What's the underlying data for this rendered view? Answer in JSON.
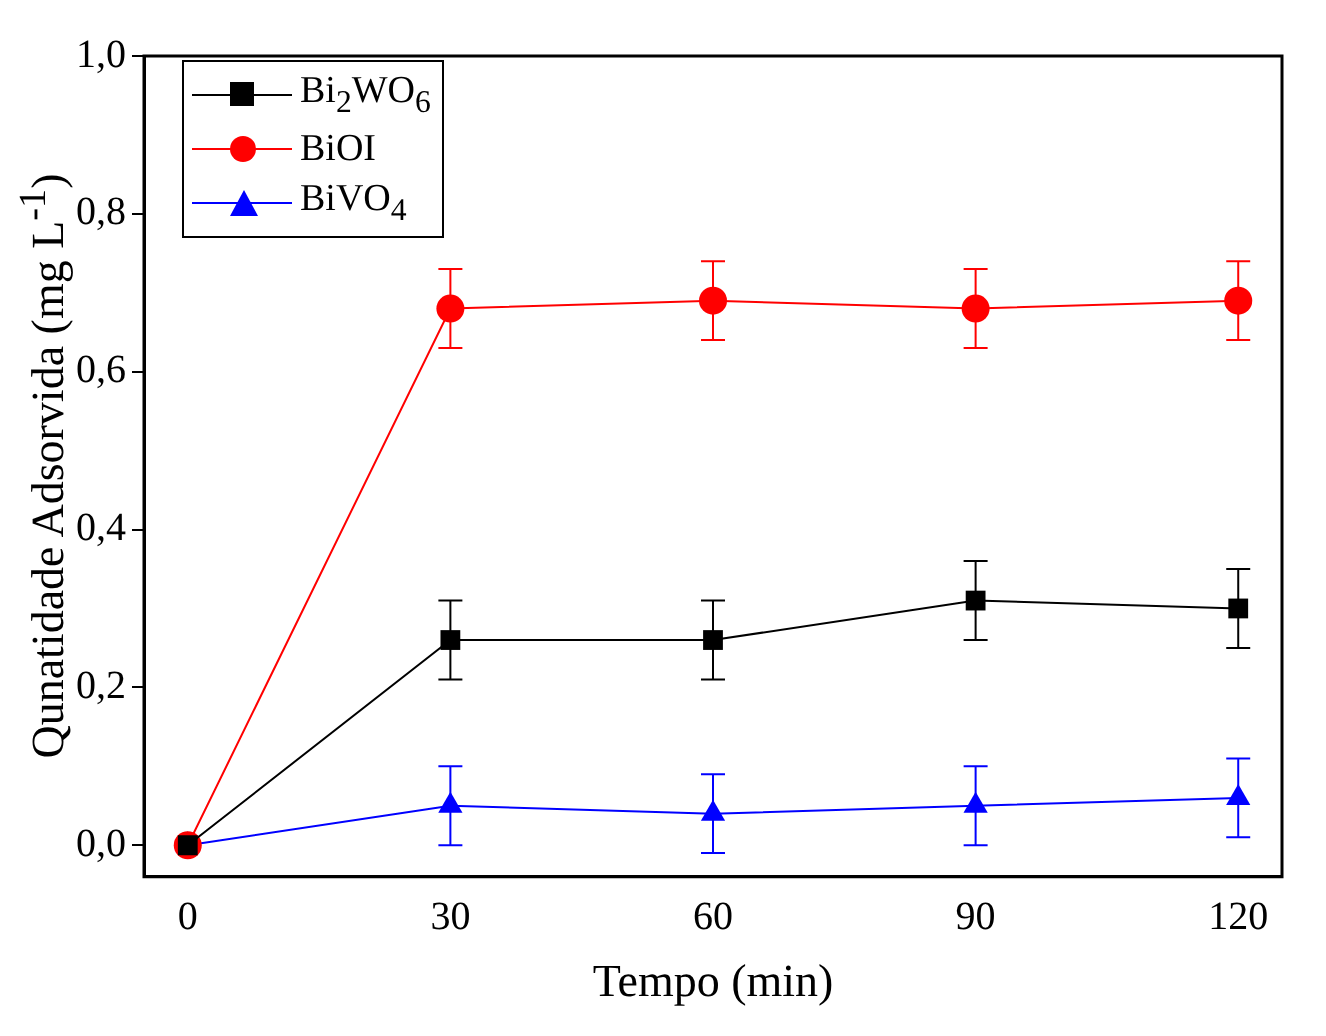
{
  "chart_data": {
    "type": "line",
    "xlabel": "Tempo (min)",
    "ylabel": "Qunatidade Adsorvida (mg L$^{-1}$)",
    "x": [
      0,
      30,
      60,
      90,
      120
    ],
    "series": [
      {
        "name": "Bi$_{2}$WO$_{6}$",
        "color": "#000000",
        "marker": "square",
        "values": [
          0,
          0.26,
          0.26,
          0.31,
          0.3
        ],
        "errors": [
          null,
          0.05,
          0.05,
          0.05,
          0.05
        ]
      },
      {
        "name": "BiOI",
        "color": "#ff0000",
        "marker": "circle",
        "values": [
          0,
          0.68,
          0.69,
          0.68,
          0.69
        ],
        "errors": [
          null,
          0.05,
          0.05,
          0.05,
          0.05
        ]
      },
      {
        "name": "BiVO$_{4}$",
        "color": "#0000ff",
        "marker": "triangle",
        "values": [
          0,
          0.05,
          0.04,
          0.05,
          0.06
        ],
        "errors": [
          null,
          0.05,
          0.05,
          0.05,
          0.05
        ]
      }
    ],
    "xlim": [
      -5,
      125
    ],
    "xticks": [
      0,
      30,
      60,
      90,
      120
    ],
    "ylim": [
      -0.04,
      1.0
    ],
    "yticks": [
      {
        "value": 0,
        "label": "0,0"
      },
      {
        "value": 0.2,
        "label": "0,2"
      },
      {
        "value": 0.4,
        "label": "0,4"
      },
      {
        "value": 0.6,
        "label": "0,6"
      },
      {
        "value": 0.8,
        "label": "0,8"
      },
      {
        "value": 1.0,
        "label": "1,0"
      }
    ],
    "grid": false,
    "legend": "top left"
  }
}
